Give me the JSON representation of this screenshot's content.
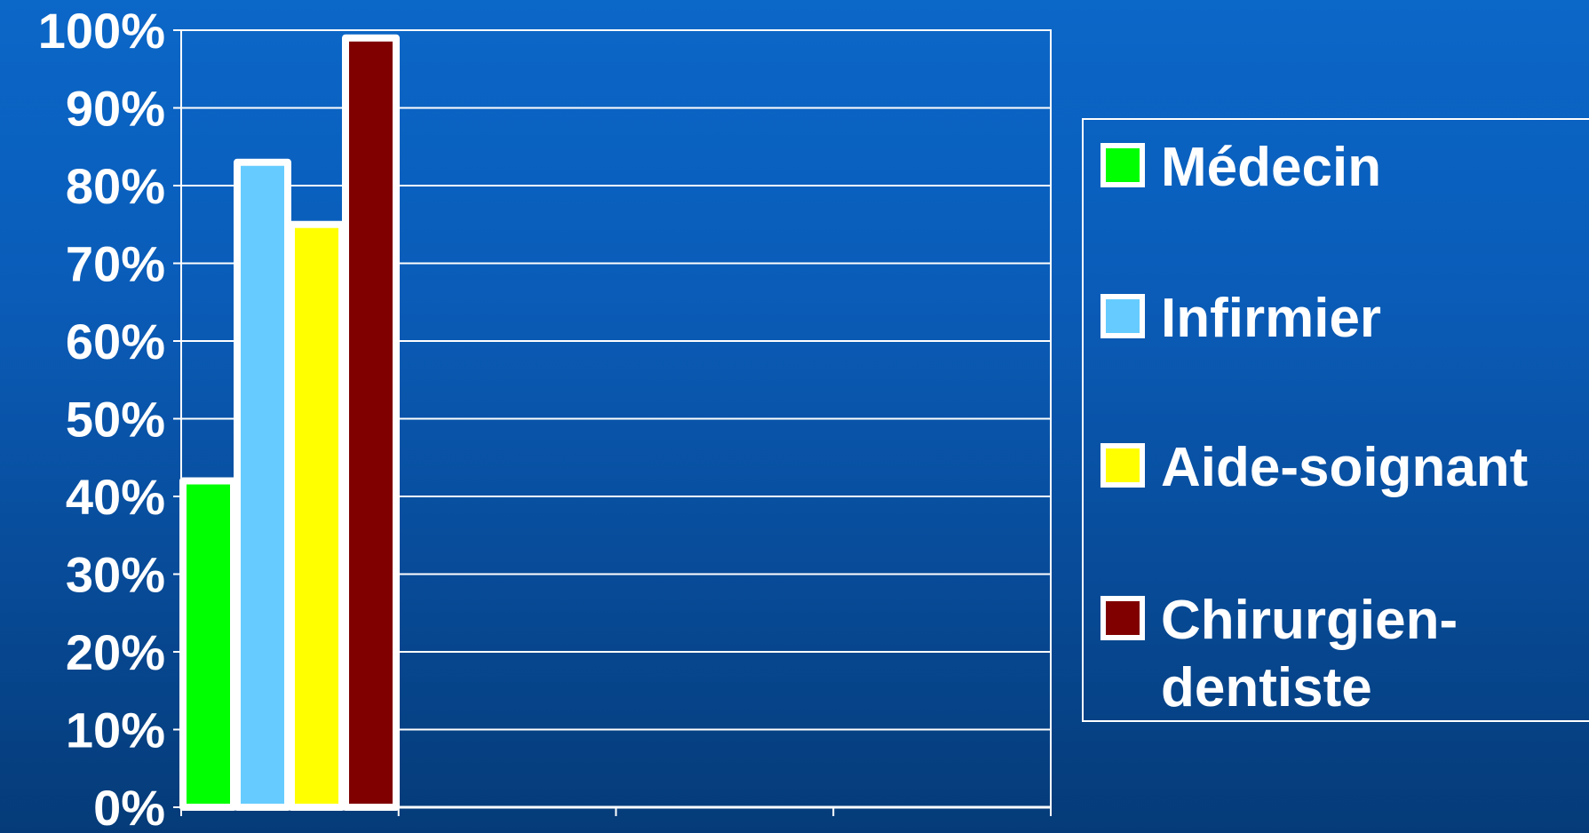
{
  "chart_data": {
    "type": "bar",
    "title": "",
    "xlabel": "",
    "ylabel": "",
    "ylim": [
      0,
      100
    ],
    "y_ticks": [
      "0%",
      "10%",
      "20%",
      "30%",
      "40%",
      "50%",
      "60%",
      "70%",
      "80%",
      "90%",
      "100%"
    ],
    "categories": [
      ""
    ],
    "series": [
      {
        "name": "Médecin",
        "values": [
          42
        ],
        "color": "#00ff00"
      },
      {
        "name": "Infirmier",
        "values": [
          83
        ],
        "color": "#66ccff"
      },
      {
        "name": "Aide-soignant",
        "values": [
          75
        ],
        "color": "#ffff00"
      },
      {
        "name": "Chirurgien-dentiste",
        "values": [
          99
        ],
        "color": "#800000"
      }
    ],
    "legend": {
      "position": "right",
      "entries": [
        {
          "lines": [
            "Médecin"
          ]
        },
        {
          "lines": [
            "Infirmier"
          ]
        },
        {
          "lines": [
            "Aide-soignant"
          ]
        },
        {
          "lines": [
            "Chirurgien-",
            "dentiste"
          ]
        }
      ]
    },
    "grid": true
  }
}
